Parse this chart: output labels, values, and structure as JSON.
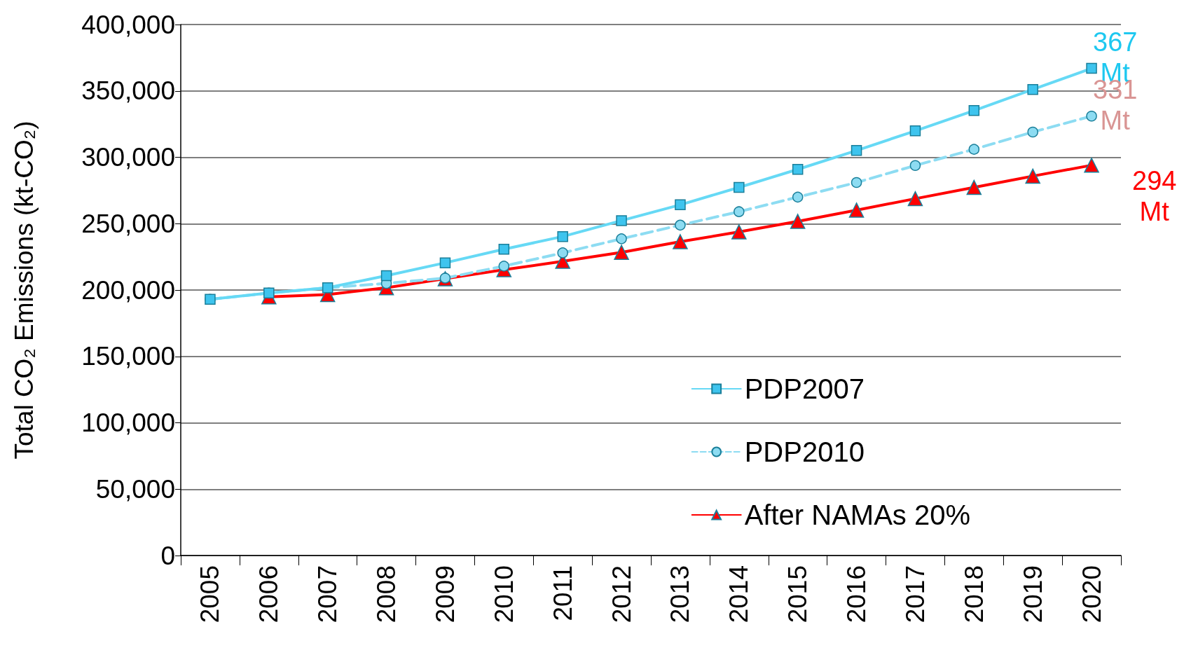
{
  "chart_data": {
    "type": "line",
    "ylabel": "Total CO₂ Emissions (kt-CO₂)",
    "categories": [
      "2005",
      "2006",
      "2007",
      "2008",
      "2009",
      "2010",
      "2011",
      "2012",
      "2013",
      "2014",
      "2015",
      "2016",
      "2017",
      "2018",
      "2019",
      "2020"
    ],
    "series": [
      {
        "name": "PDP2007",
        "color": "#66d9f5",
        "marker": "square",
        "line_style": "solid",
        "values": [
          193000,
          197700,
          201700,
          210800,
          220500,
          230700,
          240300,
          252300,
          264200,
          277300,
          290900,
          305100,
          319900,
          335200,
          351100,
          367000
        ]
      },
      {
        "name": "PDP2010",
        "color": "#8ddcf2",
        "marker": "circle",
        "line_style": "dashed",
        "values": [
          193000,
          197700,
          201700,
          205000,
          209000,
          218000,
          228000,
          238600,
          248900,
          259000,
          270000,
          281000,
          293800,
          306000,
          319000,
          331000
        ]
      },
      {
        "name": "After NAMAs 20%",
        "color": "#ff0000",
        "marker": "triangle",
        "line_style": "solid",
        "values": [
          null,
          194900,
          196600,
          201700,
          208500,
          215300,
          221600,
          228400,
          236400,
          243800,
          251700,
          260200,
          268800,
          277300,
          285800,
          294000
        ]
      }
    ],
    "ylim": [
      0,
      400000
    ],
    "yticks": [
      0,
      {
        "value": 50000,
        "label": "50,000"
      },
      {
        "value": 100000,
        "label": "100,000"
      },
      {
        "value": 150000,
        "label": "150,000"
      },
      {
        "value": 200000,
        "label": "200,000"
      },
      {
        "value": 250000,
        "label": "250,000"
      },
      {
        "value": 300000,
        "label": "300,000"
      },
      {
        "value": 350000,
        "label": "350,000"
      },
      {
        "value": 400000,
        "label": "400,000"
      }
    ],
    "grid": "y",
    "legend": "bottom right",
    "annotations": [
      {
        "text": "367 Mt",
        "x": "2020",
        "y": 367000
      },
      {
        "text": "331 Mt",
        "x": "2020",
        "y": 331000
      },
      {
        "text": "294 Mt",
        "x": "2020",
        "y": 294000
      }
    ]
  }
}
